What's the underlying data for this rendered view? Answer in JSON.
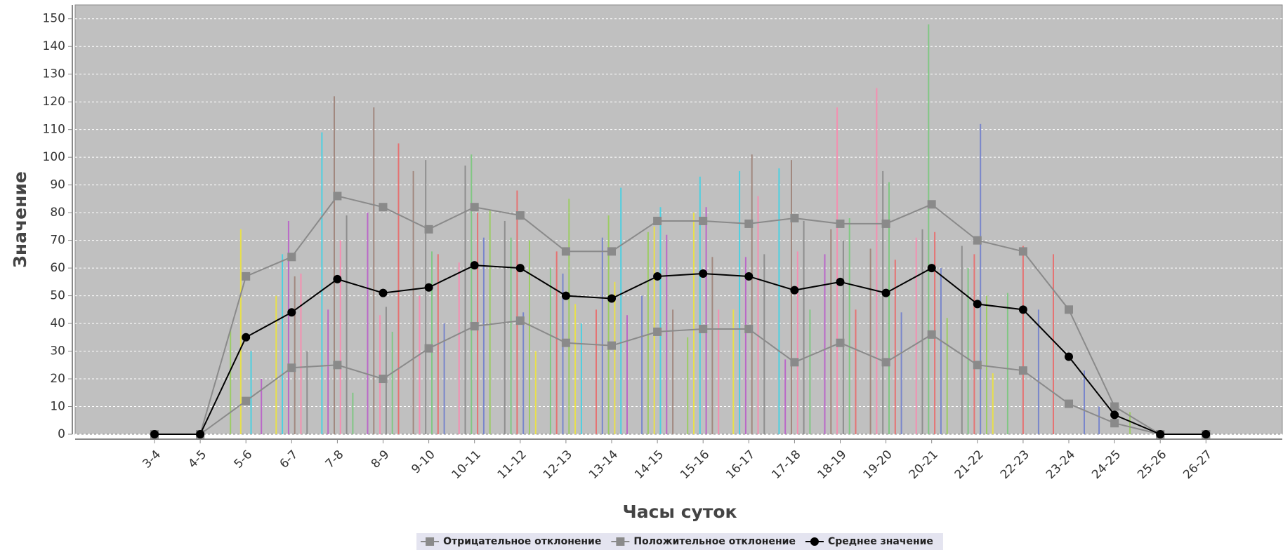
{
  "chart_data": {
    "type": "line",
    "x_label": "Часы суток",
    "y_label": "Значение",
    "categories": [
      "3-4",
      "4-5",
      "5-6",
      "6-7",
      "7-8",
      "8-9",
      "9-10",
      "10-11",
      "11-12",
      "12-13",
      "13-14",
      "14-15",
      "15-16",
      "16-17",
      "17-18",
      "18-19",
      "19-20",
      "20-21",
      "21-22",
      "22-23",
      "23-24",
      "24-25",
      "25-26",
      "26-27"
    ],
    "series": [
      {
        "name": "Отрицательное отклонение",
        "color": "#8a8a8a",
        "marker": "square",
        "values": [
          0,
          0,
          12,
          24,
          25,
          20,
          31,
          39,
          41,
          33,
          32,
          37,
          38,
          38,
          26,
          33,
          26,
          36,
          25,
          23,
          11,
          4,
          0,
          0
        ]
      },
      {
        "name": "Положительное отклонение",
        "color": "#8a8a8a",
        "marker": "square",
        "values": [
          0,
          0,
          57,
          64,
          86,
          82,
          74,
          82,
          79,
          66,
          66,
          77,
          77,
          76,
          78,
          76,
          76,
          83,
          70,
          66,
          45,
          10,
          0,
          0
        ]
      },
      {
        "name": "Среднее значение",
        "color": "#000000",
        "marker": "circle",
        "values": [
          0,
          0,
          35,
          44,
          56,
          51,
          53,
          61,
          60,
          50,
          49,
          57,
          58,
          57,
          52,
          55,
          51,
          60,
          47,
          45,
          28,
          7,
          0,
          0
        ]
      }
    ],
    "samples": [
      [],
      [],
      [
        38,
        74,
        30,
        20
      ],
      [
        50,
        65,
        77,
        57,
        58,
        30
      ],
      [
        109,
        45,
        122,
        70,
        79,
        15
      ],
      [
        80,
        118,
        43,
        46,
        37,
        105
      ],
      [
        95,
        50,
        99,
        66,
        65,
        40
      ],
      [
        62,
        97,
        101,
        80,
        71,
        81
      ],
      [
        77,
        71,
        88,
        44,
        70,
        30
      ],
      [
        60,
        66,
        58,
        85,
        47,
        40
      ],
      [
        45,
        71,
        79,
        55,
        89,
        43
      ],
      [
        50,
        73,
        75,
        82,
        72,
        45
      ],
      [
        35,
        80,
        93,
        82,
        64,
        45
      ],
      [
        45,
        95,
        64,
        101,
        86,
        65
      ],
      [
        96,
        27,
        99,
        66,
        77,
        45
      ],
      [
        65,
        74,
        118,
        70,
        78,
        45
      ],
      [
        67,
        125,
        95,
        91,
        63,
        44
      ],
      [
        71,
        74,
        148,
        73,
        60,
        42
      ],
      [
        68,
        60,
        65,
        112,
        50,
        22
      ],
      [
        51,
        68,
        45
      ],
      [
        65,
        23
      ],
      [
        10,
        8
      ],
      [],
      []
    ],
    "sample_colors": [
      "#e57373",
      "#7986cb",
      "#9ccc65",
      "#e8e04a",
      "#4dd0e1",
      "#ba68c8",
      "#a1887f",
      "#f48fb1",
      "#8e8e8e",
      "#81c784"
    ],
    "ylim": [
      0,
      155
    ],
    "yticks": [
      0,
      10,
      20,
      30,
      40,
      50,
      60,
      70,
      80,
      90,
      100,
      110,
      120,
      130,
      140,
      150
    ],
    "grid": true,
    "plot_background": "#c0c0c0",
    "legend_position": "bottom"
  }
}
